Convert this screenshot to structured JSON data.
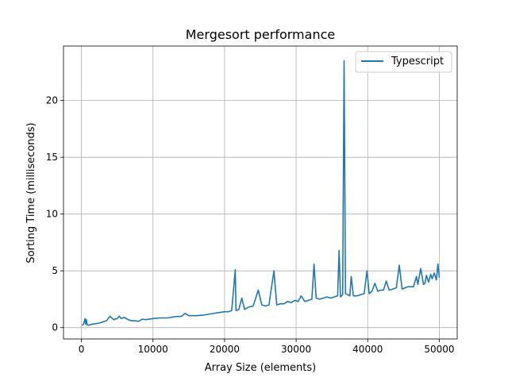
{
  "chart_data": {
    "type": "line",
    "title": "Mergesort performance",
    "xlabel": "Array Size (elements)",
    "ylabel": "Sorting Time (milliseconds)",
    "xlim": [
      -2500,
      52500
    ],
    "ylim": [
      -1.0,
      24.8
    ],
    "xticks": [
      0,
      10000,
      20000,
      30000,
      40000,
      50000
    ],
    "xtick_labels": [
      "0",
      "10000",
      "20000",
      "30000",
      "40000",
      "50000"
    ],
    "yticks": [
      0,
      5,
      10,
      15,
      20
    ],
    "ytick_labels": [
      "0",
      "5",
      "10",
      "15",
      "20"
    ],
    "grid": true,
    "legend_position": "top-right",
    "series": [
      {
        "name": "Typescript",
        "color": "#1f77b4",
        "x": [
          100,
          300,
          500,
          600,
          700,
          800,
          1000,
          1500,
          2000,
          2500,
          3000,
          3500,
          4000,
          4500,
          5000,
          5300,
          5600,
          6000,
          6500,
          7000,
          7500,
          8000,
          8500,
          9000,
          10000,
          11000,
          12000,
          13000,
          14000,
          14500,
          15000,
          16000,
          17000,
          18000,
          19000,
          20000,
          20500,
          21000,
          21500,
          21600,
          22000,
          22400,
          22800,
          23300,
          24000,
          24700,
          25200,
          25700,
          26200,
          26900,
          27300,
          27800,
          28300,
          28800,
          29300,
          29800,
          30300,
          30700,
          31200,
          31700,
          32200,
          32500,
          32800,
          33300,
          33800,
          34300,
          34800,
          35300,
          35800,
          36000,
          36200,
          36500,
          36700,
          36900,
          37200,
          37500,
          37700,
          38000,
          38500,
          39000,
          39500,
          39900,
          40200,
          40600,
          41000,
          41400,
          41800,
          42200,
          42600,
          43000,
          43500,
          44000,
          44400,
          44800,
          45200,
          45600,
          46000,
          46400,
          46800,
          47000,
          47400,
          47800,
          48000,
          48200,
          48500,
          48800,
          49000,
          49300,
          49600,
          49800,
          50000
        ],
        "values": [
          0.2,
          0.3,
          0.8,
          0.3,
          0.7,
          0.25,
          0.2,
          0.3,
          0.35,
          0.4,
          0.5,
          0.6,
          1.0,
          0.7,
          0.8,
          1.0,
          0.8,
          0.9,
          0.7,
          0.6,
          0.6,
          0.55,
          0.75,
          0.7,
          0.8,
          0.85,
          0.85,
          0.95,
          1.0,
          1.25,
          1.05,
          1.05,
          1.1,
          1.2,
          1.3,
          1.4,
          1.4,
          1.5,
          5.1,
          1.5,
          1.6,
          2.6,
          1.6,
          1.8,
          1.9,
          3.3,
          2.0,
          1.9,
          2.0,
          5.0,
          2.0,
          2.1,
          2.1,
          2.3,
          2.2,
          2.4,
          2.3,
          2.8,
          2.3,
          2.4,
          2.5,
          5.6,
          2.6,
          2.5,
          2.6,
          2.7,
          2.6,
          2.7,
          2.8,
          6.8,
          2.7,
          2.9,
          23.5,
          3.0,
          2.9,
          2.8,
          4.5,
          2.8,
          2.8,
          2.9,
          3.0,
          5.0,
          3.0,
          3.2,
          3.9,
          3.2,
          3.3,
          3.3,
          4.1,
          3.3,
          3.4,
          3.5,
          5.5,
          3.4,
          3.5,
          3.6,
          3.6,
          3.6,
          4.5,
          3.8,
          5.2,
          3.8,
          3.9,
          4.6,
          4.0,
          4.7,
          4.3,
          4.8,
          4.2,
          5.6,
          4.4
        ]
      }
    ]
  }
}
